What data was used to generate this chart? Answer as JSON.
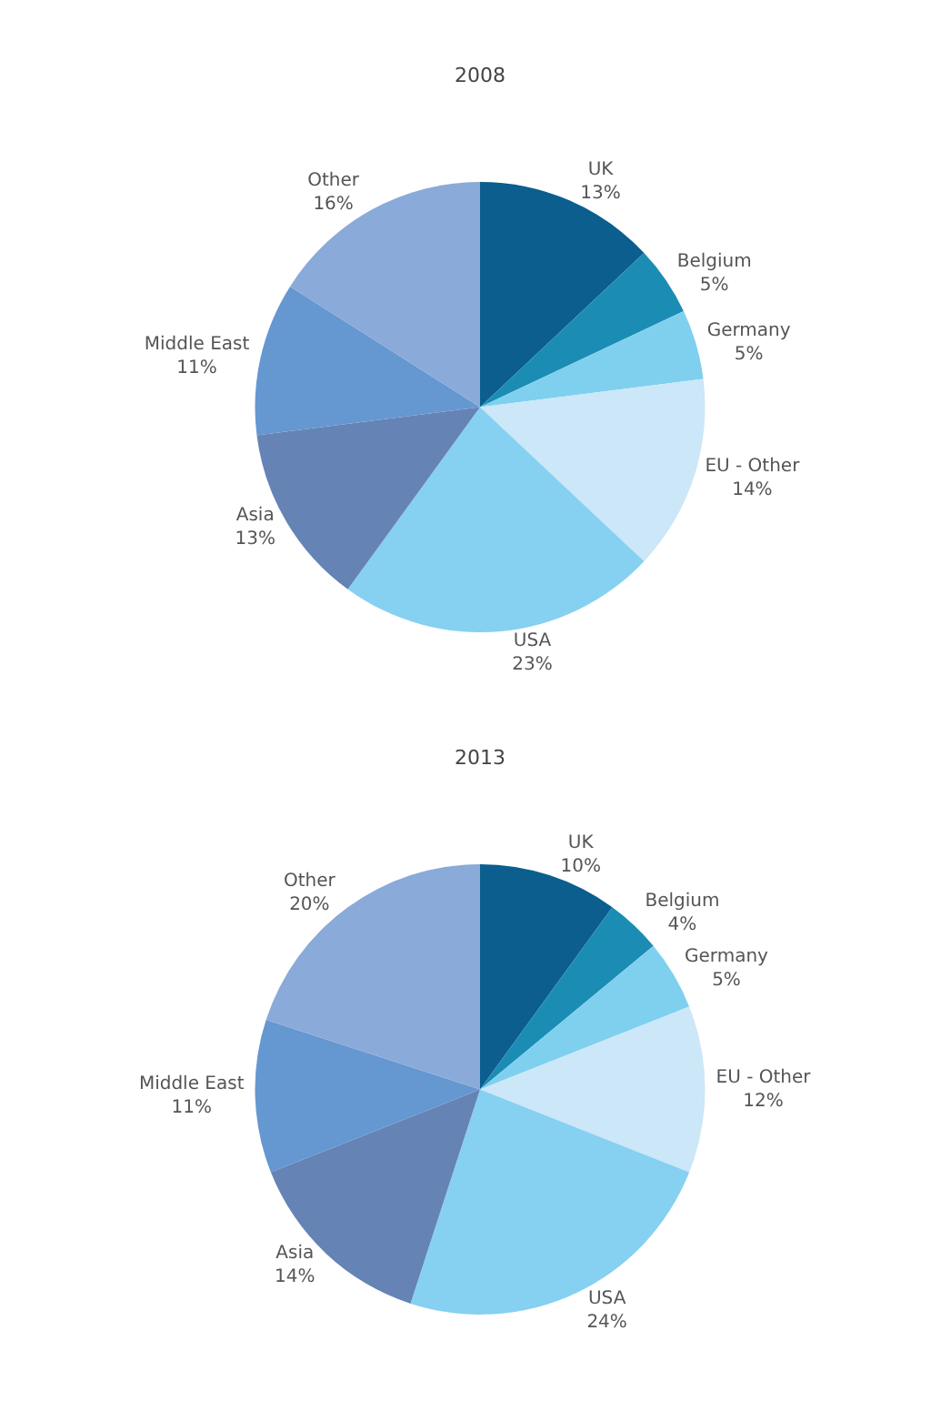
{
  "chart_data": [
    {
      "type": "pie",
      "title": "2008",
      "categories": [
        "UK",
        "Belgium",
        "Germany",
        "EU - Other",
        "USA",
        "Asia",
        "Middle East",
        "Other"
      ],
      "values": [
        13,
        5,
        5,
        14,
        23,
        13,
        11,
        16
      ],
      "value_labels": [
        "13%",
        "5%",
        "5%",
        "14%",
        "23%",
        "13%",
        "11%",
        "16%"
      ],
      "colors": [
        "#0b5e8e",
        "#1b8db4",
        "#7fd0ef",
        "#cbe7f8",
        "#86d0f1",
        "#6583b5",
        "#6597d1",
        "#8aaad9"
      ]
    },
    {
      "type": "pie",
      "title": "2013",
      "categories": [
        "UK",
        "Belgium",
        "Germany",
        "EU - Other",
        "USA",
        "Asia",
        "Middle East",
        "Other"
      ],
      "values": [
        10,
        4,
        5,
        12,
        24,
        14,
        11,
        20
      ],
      "value_labels": [
        "10%",
        "4%",
        "5%",
        "12%",
        "24%",
        "14%",
        "11%",
        "20%"
      ],
      "colors": [
        "#0b5e8e",
        "#1b8db4",
        "#7fd0ef",
        "#cbe7f8",
        "#86d0f1",
        "#6583b5",
        "#6597d1",
        "#8aaad9"
      ]
    }
  ]
}
